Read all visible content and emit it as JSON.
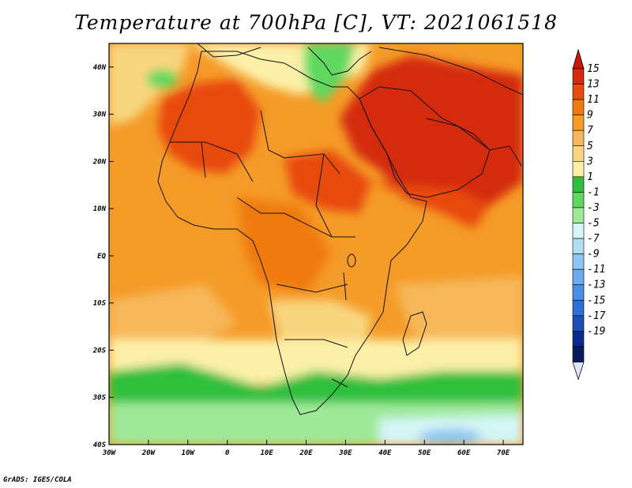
{
  "title": "Temperature at 700hPa [C], VT: 2021061518",
  "footer": "GrADS: IGES/COLA",
  "axes": {
    "x_ticks": [
      "30W",
      "20W",
      "10W",
      "0",
      "10E",
      "20E",
      "30E",
      "40E",
      "50E",
      "60E",
      "70E"
    ],
    "y_ticks": [
      "40N",
      "30N",
      "20N",
      "10N",
      "EQ",
      "10S",
      "20S",
      "30S",
      "40S"
    ]
  },
  "colorbar": {
    "labels": [
      "15",
      "13",
      "11",
      "9",
      "7",
      "5",
      "3",
      "1",
      "-1",
      "-3",
      "-5",
      "-7",
      "-9",
      "-11",
      "-13",
      "-15",
      "-17",
      "-19"
    ],
    "colors": [
      "#d42a0f",
      "#e8490f",
      "#f07a0f",
      "#f59b28",
      "#f6b85a",
      "#f8d67f",
      "#fcf0a8",
      "#2fbf3e",
      "#5fd860",
      "#9ee99a",
      "#d4f6f6",
      "#b2ddf4",
      "#8fc6f1",
      "#6cabec",
      "#4a8fe6",
      "#2e6fd8",
      "#1d4fb8",
      "#0b2a8c",
      "#061a5c"
    ],
    "top_arrow_color": "#c8160a",
    "bottom_arrow_color": "#e0e6fa"
  },
  "chart_data": {
    "type": "heatmap",
    "variable": "Temperature at 700hPa",
    "units": "C",
    "valid_time": "2021061518",
    "xlim": [
      -30,
      75
    ],
    "ylim": [
      -40,
      45
    ],
    "levels": [
      15,
      13,
      11,
      9,
      7,
      5,
      3,
      1,
      -1,
      -3,
      -5,
      -7,
      -9,
      -11,
      -13,
      -15,
      -17,
      -19
    ]
  }
}
